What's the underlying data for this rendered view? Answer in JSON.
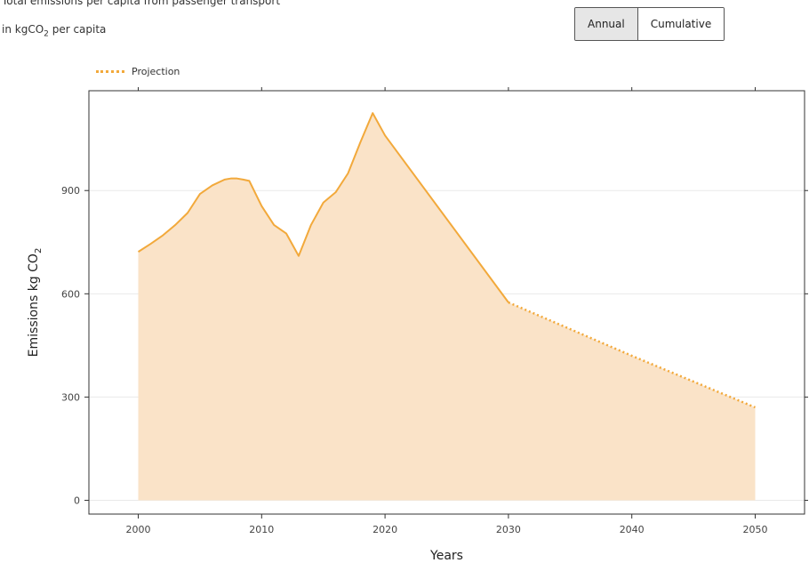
{
  "header": {
    "title": "Total emissions per capita from passenger transport",
    "subtitle_main": "in kgCO",
    "subtitle_sub": "2",
    "subtitle_rest": " per capita"
  },
  "toggle": {
    "options": [
      "Annual",
      "Cumulative"
    ],
    "selected": "Annual"
  },
  "colors": {
    "accent": "#f2a93b",
    "fill": "#fae3c8"
  },
  "chart_data": {
    "type": "area",
    "legend": {
      "entries": [
        "Projection"
      ],
      "placement": "top-left"
    },
    "xlabel": "Years",
    "ylabel": "Emissions kg CO",
    "ylabel_sub": "2",
    "xlim": [
      1996,
      2054
    ],
    "ylim": [
      -40,
      1190
    ],
    "xticks": [
      2000,
      2010,
      2020,
      2030,
      2040,
      2050
    ],
    "yticks": [
      0,
      300,
      600,
      900
    ],
    "grid": "horizontal",
    "series": [
      {
        "style": "solid",
        "x": [
          2000,
          2001,
          2002,
          2003,
          2004,
          2005,
          2006,
          2007,
          2007.5,
          2008,
          2008.5,
          2009,
          2010,
          2011,
          2012,
          2013,
          2014,
          2015,
          2016,
          2017,
          2018,
          2019,
          2020,
          2030
        ],
        "y": [
          722,
          745,
          770,
          800,
          835,
          890,
          915,
          932,
          935,
          935,
          932,
          928,
          855,
          800,
          775,
          710,
          800,
          865,
          895,
          950,
          1040,
          1125,
          1060,
          575
        ]
      },
      {
        "name": "Projection",
        "style": "dotted",
        "x": [
          2030,
          2040,
          2050
        ],
        "y": [
          575,
          420,
          270
        ]
      }
    ]
  }
}
